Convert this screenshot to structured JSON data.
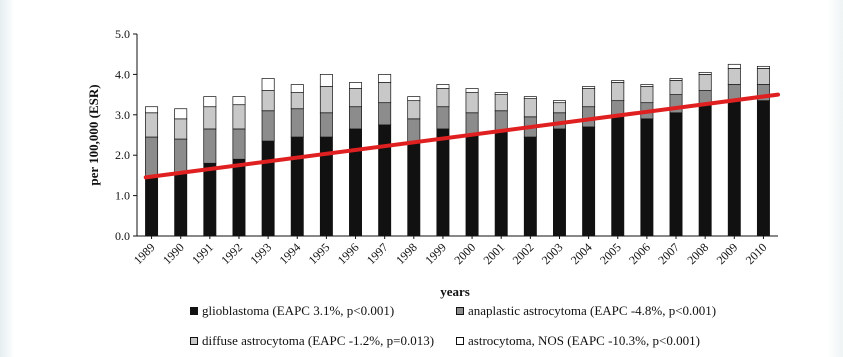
{
  "chart_data": {
    "type": "bar",
    "stacked": true,
    "categories": [
      "1989",
      "1990",
      "1991",
      "1992",
      "1993",
      "1994",
      "1995",
      "1996",
      "1997",
      "1998",
      "1999",
      "2000",
      "2001",
      "2002",
      "2003",
      "2004",
      "2005",
      "2006",
      "2007",
      "2008",
      "2009",
      "2010"
    ],
    "series": [
      {
        "name": "glioblastoma (EAPC 3.1%, p<0.001)",
        "color": "#111111",
        "values": [
          1.45,
          1.55,
          1.8,
          1.9,
          2.35,
          2.45,
          2.45,
          2.65,
          2.75,
          2.3,
          2.65,
          2.5,
          2.6,
          2.45,
          2.65,
          2.7,
          3.0,
          2.9,
          3.05,
          3.25,
          3.35,
          3.35
        ]
      },
      {
        "name": "anaplastic astrocytoma (EAPC -4.8%, p<0.001)",
        "color": "#8c8c8c",
        "values": [
          1.0,
          0.85,
          0.85,
          0.75,
          0.75,
          0.7,
          0.6,
          0.55,
          0.55,
          0.6,
          0.55,
          0.55,
          0.5,
          0.5,
          0.4,
          0.5,
          0.35,
          0.4,
          0.45,
          0.35,
          0.4,
          0.4
        ]
      },
      {
        "name": "diffuse astrocytoma (EAPC -1.2%, p=0.013)",
        "color": "#c8c8c8",
        "values": [
          0.6,
          0.5,
          0.55,
          0.6,
          0.5,
          0.4,
          0.65,
          0.45,
          0.5,
          0.45,
          0.45,
          0.5,
          0.4,
          0.45,
          0.25,
          0.45,
          0.45,
          0.4,
          0.35,
          0.4,
          0.4,
          0.4
        ]
      },
      {
        "name": "astrocytoma, NOS (EAPC -10.3%, p<0.001)",
        "color": "#ffffff",
        "values": [
          0.15,
          0.25,
          0.25,
          0.2,
          0.3,
          0.2,
          0.3,
          0.15,
          0.2,
          0.1,
          0.1,
          0.1,
          0.05,
          0.05,
          0.05,
          0.05,
          0.05,
          0.05,
          0.05,
          0.05,
          0.1,
          0.05
        ]
      }
    ],
    "trendline": {
      "color": "#e02020",
      "start": [
        1989,
        1.45
      ],
      "end": [
        2010,
        3.5
      ]
    },
    "xlabel": "years",
    "ylabel": "per 100,000 (ESR)",
    "ylim": [
      0.0,
      5.0
    ],
    "yticks": [
      "0.0",
      "1.0",
      "2.0",
      "3.0",
      "4.0",
      "5.0"
    ],
    "grid": false,
    "legend_position": "bottom"
  }
}
